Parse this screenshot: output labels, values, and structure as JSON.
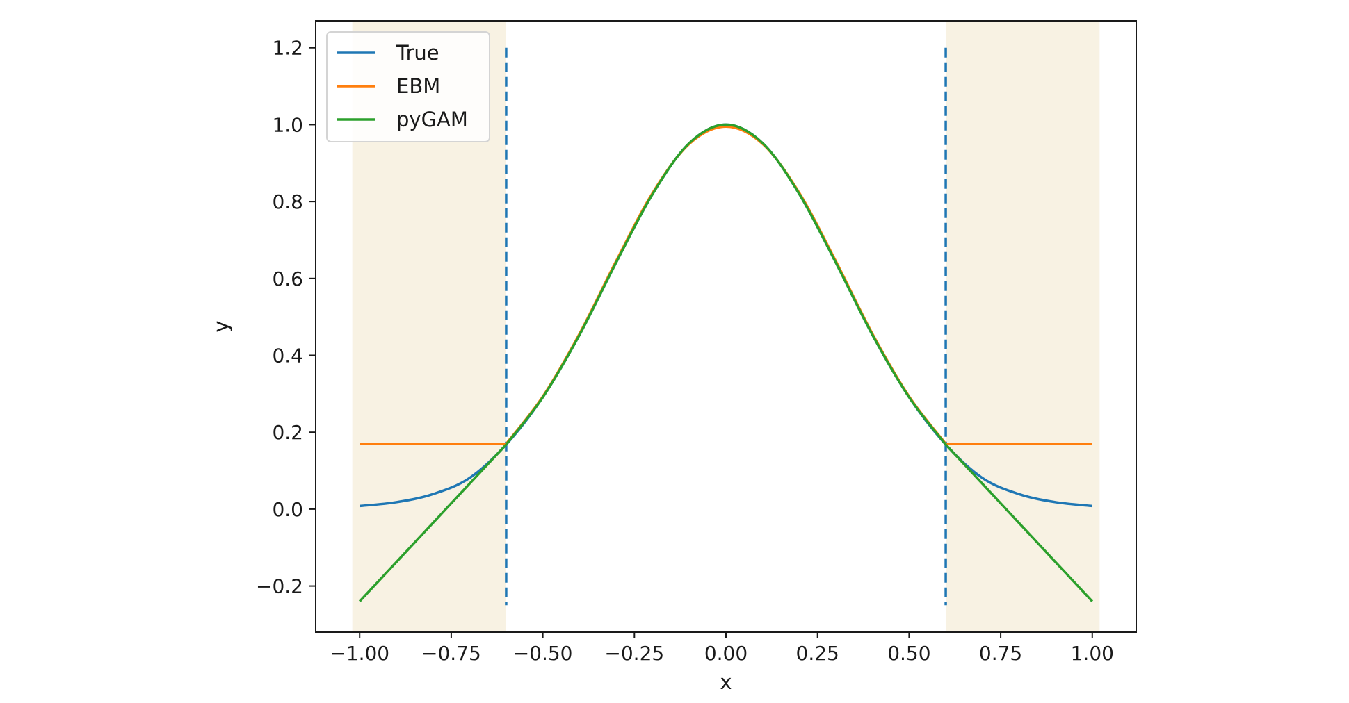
{
  "chart_data": {
    "type": "line",
    "title": "",
    "xlabel": "x",
    "ylabel": "y",
    "xlim": [
      -1.12,
      1.12
    ],
    "ylim": [
      -0.32,
      1.27
    ],
    "xticks": [
      -1.0,
      -0.75,
      -0.5,
      -0.25,
      0.0,
      0.25,
      0.5,
      0.75,
      1.0
    ],
    "xtick_labels": [
      "−1.00",
      "−0.75",
      "−0.50",
      "−0.25",
      "0.00",
      "0.25",
      "0.50",
      "0.75",
      "1.00"
    ],
    "yticks": [
      -0.2,
      0.0,
      0.2,
      0.4,
      0.6,
      0.8,
      1.0,
      1.2
    ],
    "ytick_labels": [
      "−0.2",
      "0.0",
      "0.2",
      "0.4",
      "0.6",
      "0.8",
      "1.0",
      "1.2"
    ],
    "grid": false,
    "legend_position": "top-left",
    "shaded_regions": [
      {
        "x_start": -1.02,
        "x_end": -0.6,
        "color": "#f8f2e3"
      },
      {
        "x_start": 0.6,
        "x_end": 1.02,
        "color": "#f8f2e3"
      }
    ],
    "vertical_lines": [
      {
        "x": -0.6,
        "y_start": -0.25,
        "y_end": 1.2,
        "style": "dashed",
        "color": "#1f77b4"
      },
      {
        "x": 0.6,
        "y_start": -0.25,
        "y_end": 1.2,
        "style": "dashed",
        "color": "#1f77b4"
      }
    ],
    "series": [
      {
        "name": "True",
        "color": "#1f77b4",
        "x": [
          -1.0,
          -0.9,
          -0.8,
          -0.7,
          -0.6,
          -0.5,
          -0.4,
          -0.3,
          -0.2,
          -0.1,
          0.0,
          0.1,
          0.2,
          0.3,
          0.4,
          0.5,
          0.6,
          0.7,
          0.8,
          0.9,
          1.0
        ],
        "y": [
          0.008,
          0.018,
          0.039,
          0.081,
          0.168,
          0.291,
          0.453,
          0.641,
          0.82,
          0.952,
          1.0,
          0.952,
          0.82,
          0.641,
          0.453,
          0.291,
          0.168,
          0.081,
          0.039,
          0.018,
          0.008
        ]
      },
      {
        "name": "EBM",
        "color": "#ff7f0e",
        "x": [
          -1.0,
          -0.6,
          -0.5,
          -0.4,
          -0.3,
          -0.2,
          -0.1,
          0.0,
          0.1,
          0.2,
          0.3,
          0.4,
          0.5,
          0.6,
          1.0
        ],
        "y": [
          0.17,
          0.17,
          0.293,
          0.456,
          0.645,
          0.823,
          0.95,
          0.995,
          0.95,
          0.823,
          0.645,
          0.456,
          0.293,
          0.17,
          0.17
        ]
      },
      {
        "name": "pyGAM",
        "color": "#2ca02c",
        "x": [
          -1.0,
          -0.6,
          -0.5,
          -0.4,
          -0.3,
          -0.2,
          -0.1,
          0.0,
          0.1,
          0.2,
          0.3,
          0.4,
          0.5,
          0.6,
          1.0
        ],
        "y": [
          -0.24,
          0.168,
          0.291,
          0.453,
          0.641,
          0.82,
          0.952,
          1.0,
          0.952,
          0.82,
          0.641,
          0.453,
          0.291,
          0.168,
          -0.24
        ]
      }
    ]
  }
}
